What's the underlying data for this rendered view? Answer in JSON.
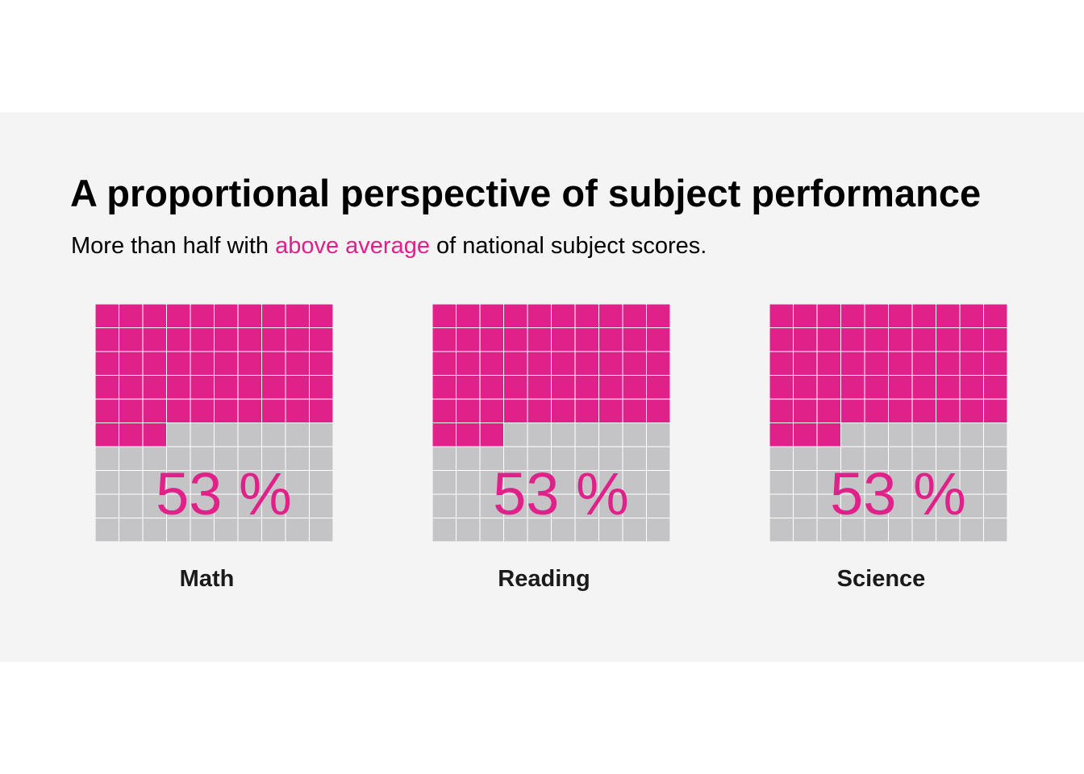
{
  "colors": {
    "panel_background": "#f4f4f4",
    "filled": "#e0218a",
    "empty": "#c4c4c6",
    "grid_line": "#ffffff"
  },
  "header": {
    "title": "A proportional perspective of subject performance",
    "subtitle_before": "More than half with ",
    "subtitle_highlight": "above average",
    "subtitle_after": " of national subject scores."
  },
  "chart_data": [
    {
      "type": "waffle",
      "grid": {
        "rows": 10,
        "cols": 10
      },
      "category": "Math",
      "value": 53,
      "value_label": "53 %"
    },
    {
      "type": "waffle",
      "grid": {
        "rows": 10,
        "cols": 10
      },
      "category": "Reading",
      "value": 53,
      "value_label": "53 %"
    },
    {
      "type": "waffle",
      "grid": {
        "rows": 10,
        "cols": 10
      },
      "category": "Science",
      "value": 53,
      "value_label": "53 %"
    }
  ]
}
